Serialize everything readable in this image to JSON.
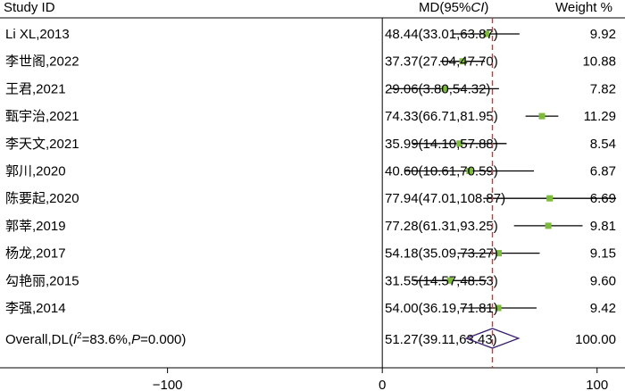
{
  "chart_data": {
    "type": "forest",
    "headers": {
      "study": "Study ID",
      "md_prefix": "MD(95%",
      "md_ci": "CI",
      "md_suffix": ")",
      "weight": "Weight %"
    },
    "studies": [
      {
        "label": "Li XL,2013",
        "md": 48.44,
        "lo": 33.01,
        "hi": 63.87,
        "ci_text": "48.44(33.01,63.87)",
        "weight": "9.92"
      },
      {
        "label": "李世阁,2022",
        "md": 37.37,
        "lo": 27.04,
        "hi": 47.7,
        "ci_text": "37.37(27.04,47.70)",
        "weight": "10.88"
      },
      {
        "label": "王君,2021",
        "md": 29.06,
        "lo": 3.8,
        "hi": 54.32,
        "ci_text": "29.06(3.80,54.32)",
        "weight": "7.82"
      },
      {
        "label": "甄宇治,2021",
        "md": 74.33,
        "lo": 66.71,
        "hi": 81.95,
        "ci_text": "74.33(66.71,81.95)",
        "weight": "11.29"
      },
      {
        "label": "李天文,2021",
        "md": 35.99,
        "lo": 14.1,
        "hi": 57.88,
        "ci_text": "35.99(14.10,57.88)",
        "weight": "8.54"
      },
      {
        "label": "郭川,2020",
        "md": 40.6,
        "lo": 10.61,
        "hi": 70.59,
        "ci_text": "40.60(10.61,70.59)",
        "weight": "6.87"
      },
      {
        "label": "陈要起,2020",
        "md": 77.94,
        "lo": 47.01,
        "hi": 108.87,
        "ci_text": "77.94(47.01,108.87)",
        "weight": "6.69"
      },
      {
        "label": "郭莘,2019",
        "md": 77.28,
        "lo": 61.31,
        "hi": 93.25,
        "ci_text": "77.28(61.31,93.25)",
        "weight": "9.81"
      },
      {
        "label": "杨龙,2017",
        "md": 54.18,
        "lo": 35.09,
        "hi": 73.27,
        "ci_text": "54.18(35.09,73.27)",
        "weight": "9.15"
      },
      {
        "label": "勾艳丽,2015",
        "md": 31.55,
        "lo": 14.57,
        "hi": 48.53,
        "ci_text": "31.55(14.57,48.53)",
        "weight": "9.60"
      },
      {
        "label": "李强,2014",
        "md": 54.0,
        "lo": 36.19,
        "hi": 71.81,
        "ci_text": "54.00(36.19,71.81)",
        "weight": "9.42"
      }
    ],
    "overall": {
      "label_prefix": "Overall,DL(",
      "label_i": "I",
      "label_sup": "2",
      "label_mid": "=83.6%,",
      "label_p": "P",
      "label_suffix": "=0.000)",
      "md": 51.27,
      "lo": 39.11,
      "hi": 63.43,
      "ci_text": "51.27(39.11,63.43)",
      "weight": "100.00"
    },
    "x_ticks": [
      -100,
      0,
      100
    ],
    "x_tick_labels": [
      "−100",
      "0",
      "100"
    ],
    "xlim": [
      -178,
      113
    ],
    "null_line": 0,
    "pooled_line": 51.27,
    "colors": {
      "marker": "#7dbb3c",
      "pooled_line": "#d9342b",
      "diamond": "#3a1f6e",
      "axis": "#000000"
    }
  }
}
